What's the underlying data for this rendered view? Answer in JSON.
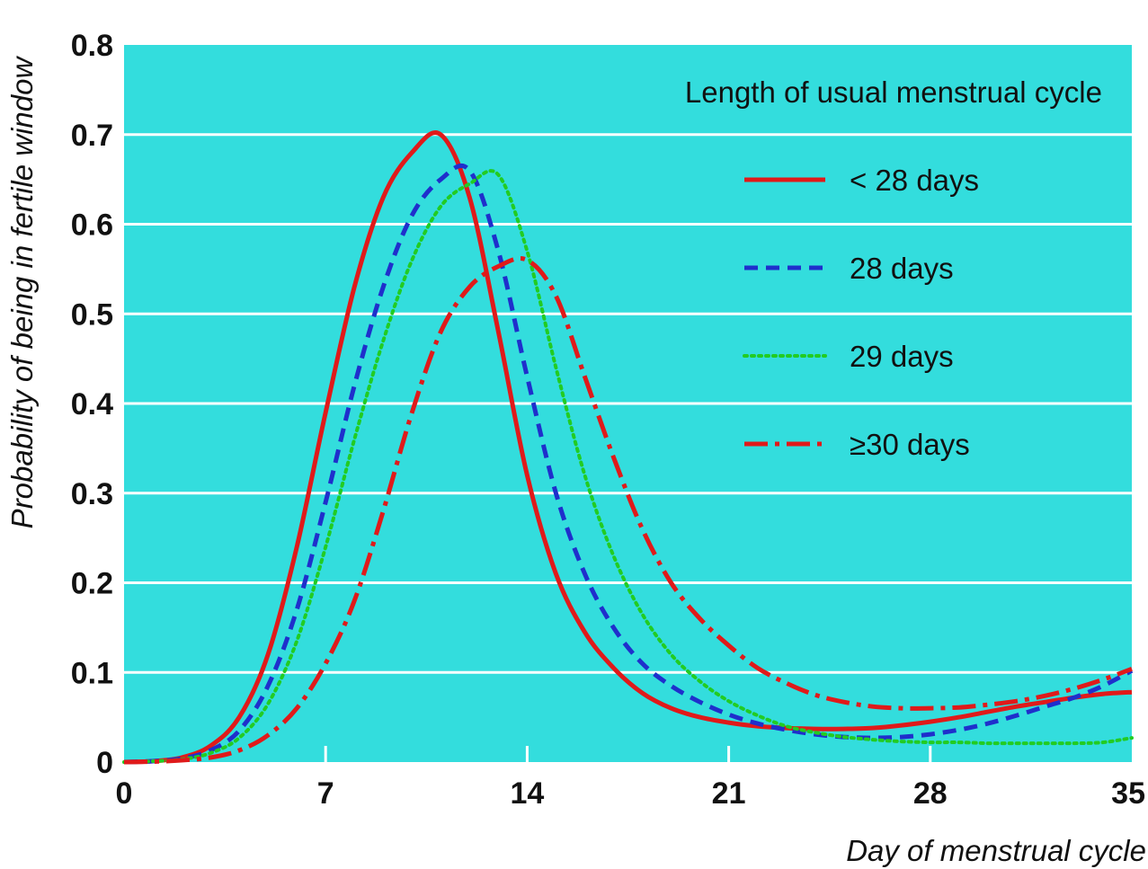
{
  "chart_data": {
    "type": "line",
    "title": "",
    "xlabel": "Day of menstrual cycle",
    "ylabel": "Probability of being in fertile window",
    "xlim": [
      0,
      35
    ],
    "ylim": [
      0,
      0.8
    ],
    "xticks": [
      0,
      7,
      14,
      21,
      28,
      35
    ],
    "yticks": [
      0,
      0.1,
      0.2,
      0.3,
      0.4,
      0.5,
      0.6,
      0.7,
      0.8
    ],
    "xtick_labels": [
      "0",
      "7",
      "14",
      "21",
      "28",
      "35"
    ],
    "ytick_labels": [
      "0",
      "0.1",
      "0.2",
      "0.3",
      "0.4",
      "0.5",
      "0.6",
      "0.7",
      "0.8"
    ],
    "grid": true,
    "legend_title": "Length of usual menstrual cycle",
    "legend_position": "top-right",
    "x": [
      0,
      1,
      2,
      3,
      4,
      5,
      6,
      7,
      8,
      9,
      10,
      11,
      12,
      13,
      14,
      15,
      16,
      17,
      18,
      19,
      20,
      21,
      22,
      23,
      24,
      25,
      26,
      27,
      28,
      29,
      30,
      31,
      32,
      33,
      34,
      35
    ],
    "series": [
      {
        "name": "< 28 days",
        "color": "#e01a1a",
        "dash": "solid",
        "values": [
          0,
          0.001,
          0.005,
          0.018,
          0.05,
          0.12,
          0.24,
          0.39,
          0.53,
          0.63,
          0.68,
          0.7,
          0.63,
          0.48,
          0.32,
          0.21,
          0.145,
          0.105,
          0.077,
          0.06,
          0.05,
          0.044,
          0.04,
          0.038,
          0.037,
          0.037,
          0.038,
          0.041,
          0.045,
          0.05,
          0.056,
          0.062,
          0.067,
          0.072,
          0.076,
          0.078
        ]
      },
      {
        "name": "28 days",
        "color": "#1f2fcc",
        "dash": "dashed",
        "values": [
          0,
          0.001,
          0.004,
          0.013,
          0.035,
          0.085,
          0.17,
          0.29,
          0.42,
          0.53,
          0.61,
          0.65,
          0.66,
          0.57,
          0.43,
          0.3,
          0.21,
          0.15,
          0.11,
          0.085,
          0.067,
          0.053,
          0.043,
          0.036,
          0.031,
          0.028,
          0.027,
          0.028,
          0.031,
          0.036,
          0.043,
          0.052,
          0.062,
          0.072,
          0.085,
          0.102
        ]
      },
      {
        "name": "29 days",
        "color": "#22cc22",
        "dash": "dotted",
        "values": [
          0,
          0.001,
          0.003,
          0.01,
          0.027,
          0.065,
          0.135,
          0.24,
          0.36,
          0.47,
          0.56,
          0.62,
          0.645,
          0.655,
          0.57,
          0.44,
          0.32,
          0.23,
          0.165,
          0.12,
          0.09,
          0.068,
          0.052,
          0.04,
          0.033,
          0.028,
          0.025,
          0.023,
          0.022,
          0.022,
          0.021,
          0.021,
          0.021,
          0.021,
          0.022,
          0.027
        ]
      },
      {
        "name": "≥30 days",
        "color": "#e01a1a",
        "dash": "dashdot",
        "values": [
          0,
          0.0005,
          0.002,
          0.005,
          0.013,
          0.03,
          0.06,
          0.11,
          0.18,
          0.28,
          0.39,
          0.48,
          0.53,
          0.553,
          0.56,
          0.52,
          0.43,
          0.34,
          0.26,
          0.2,
          0.16,
          0.13,
          0.105,
          0.088,
          0.075,
          0.067,
          0.062,
          0.06,
          0.06,
          0.061,
          0.064,
          0.068,
          0.074,
          0.082,
          0.092,
          0.104
        ]
      }
    ]
  }
}
